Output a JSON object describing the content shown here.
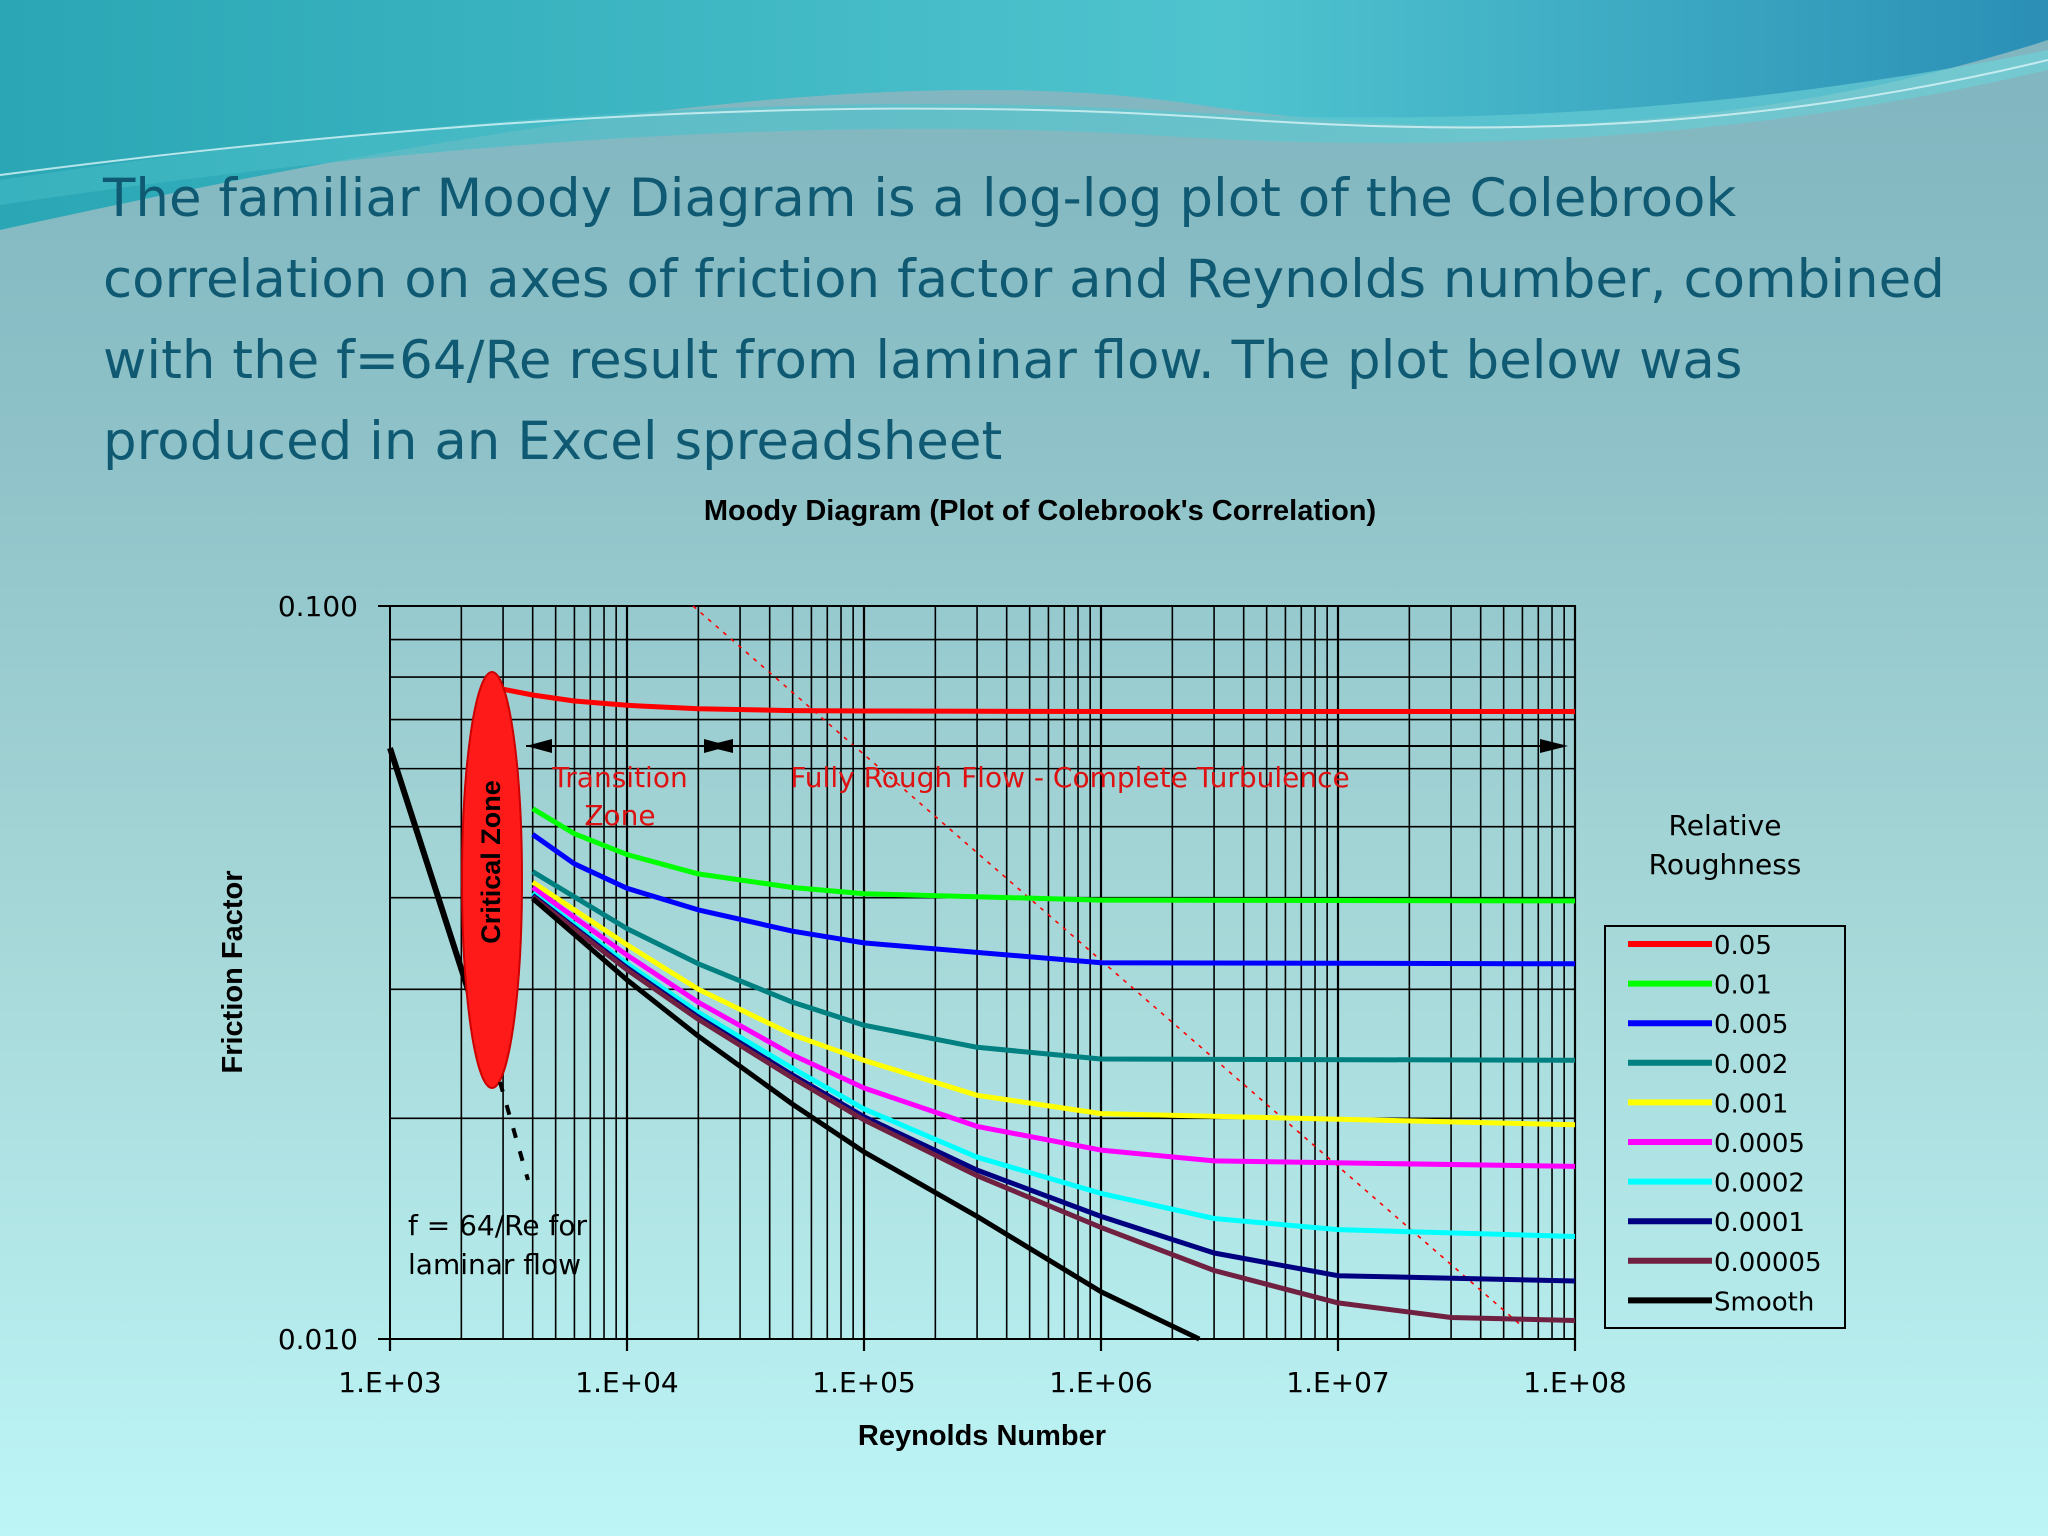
{
  "slide": {
    "text": "The familiar Moody Diagram is a log-log plot of the Colebrook correlation on axes of friction factor and Reynolds number, combined with the f=64/Re result from laminar flow. The plot below was produced in an Excel spreadsheet"
  },
  "colors": {
    "text": "#0f5a72",
    "annotation": "#dd1111"
  },
  "chart_data": {
    "type": "line",
    "title": "Moody Diagram (Plot of Colebrook's Correlation)",
    "xlabel": "Reynolds Number",
    "ylabel": "Friction Factor",
    "xscale": "log",
    "yscale": "log",
    "xlim": [
      1000,
      100000000
    ],
    "ylim": [
      0.01,
      0.1
    ],
    "x_ticks": [
      "1.E+03",
      "1.E+04",
      "1.E+05",
      "1.E+06",
      "1.E+07",
      "1.E+08"
    ],
    "y_ticks": [
      "0.100",
      "0.010"
    ],
    "grid": true,
    "legend_title": "Relative Roughness",
    "legend_position": "right",
    "laminar": {
      "x": [
        1000,
        2300
      ],
      "y": [
        0.064,
        0.0278
      ]
    },
    "series": [
      {
        "name": "0.05",
        "color": "#ff0000",
        "x": [
          2700,
          4000,
          6000,
          10000,
          20000,
          50000,
          100000,
          1000000,
          100000000
        ],
        "y": [
          0.0775,
          0.0756,
          0.0742,
          0.0732,
          0.0724,
          0.072,
          0.0719,
          0.0718,
          0.0718
        ]
      },
      {
        "name": "0.01",
        "color": "#00ff00",
        "x": [
          4000,
          6000,
          10000,
          20000,
          50000,
          100000,
          1000000,
          100000000
        ],
        "y": [
          0.0529,
          0.0489,
          0.0458,
          0.0431,
          0.0413,
          0.0405,
          0.0397,
          0.0396
        ]
      },
      {
        "name": "0.005",
        "color": "#0000ff",
        "x": [
          4000,
          6000,
          10000,
          20000,
          50000,
          100000,
          1000000,
          100000000
        ],
        "y": [
          0.0488,
          0.0445,
          0.0412,
          0.0385,
          0.036,
          0.0347,
          0.0326,
          0.0325
        ]
      },
      {
        "name": "0.002",
        "color": "#008080",
        "x": [
          4000,
          10000,
          20000,
          50000,
          100000,
          300000,
          1000000,
          100000000
        ],
        "y": [
          0.0434,
          0.0363,
          0.0325,
          0.0288,
          0.0268,
          0.025,
          0.0241,
          0.024
        ]
      },
      {
        "name": "0.001",
        "color": "#ffff00",
        "x": [
          4000,
          10000,
          20000,
          50000,
          100000,
          300000,
          1000000,
          100000000
        ],
        "y": [
          0.042,
          0.0345,
          0.03,
          0.026,
          0.024,
          0.0215,
          0.0203,
          0.0196
        ]
      },
      {
        "name": "0.0005",
        "color": "#ff00ff",
        "x": [
          4000,
          10000,
          20000,
          50000,
          100000,
          300000,
          1000000,
          3000000,
          100000000
        ],
        "y": [
          0.0413,
          0.0334,
          0.0288,
          0.0244,
          0.022,
          0.0195,
          0.0181,
          0.0175,
          0.0172
        ]
      },
      {
        "name": "0.0002",
        "color": "#00ffff",
        "x": [
          4000,
          10000,
          20000,
          50000,
          100000,
          300000,
          1000000,
          3000000,
          10000000,
          100000000
        ],
        "y": [
          0.0406,
          0.0325,
          0.0279,
          0.0234,
          0.0206,
          0.0177,
          0.0158,
          0.0146,
          0.0141,
          0.0138
        ]
      },
      {
        "name": "0.0001",
        "color": "#000080",
        "x": [
          4000,
          10000,
          20000,
          50000,
          100000,
          300000,
          1000000,
          3000000,
          10000000,
          100000000
        ],
        "y": [
          0.0403,
          0.0321,
          0.0275,
          0.0229,
          0.0201,
          0.017,
          0.0147,
          0.0131,
          0.0122,
          0.012
        ]
      },
      {
        "name": "0.00005",
        "color": "#702040",
        "x": [
          4000,
          10000,
          20000,
          50000,
          100000,
          300000,
          1000000,
          3000000,
          10000000,
          30000000,
          100000000
        ],
        "y": [
          0.0401,
          0.0319,
          0.0273,
          0.0227,
          0.0199,
          0.0167,
          0.0142,
          0.0124,
          0.0112,
          0.0107,
          0.0106
        ]
      },
      {
        "name": "Smooth",
        "color": "#000000",
        "x": [
          4000,
          10000,
          20000,
          50000,
          100000,
          300000,
          1000000,
          2600000
        ],
        "y": [
          0.0399,
          0.0309,
          0.0259,
          0.0209,
          0.018,
          0.0147,
          0.0116,
          0.01
        ]
      }
    ],
    "annotations": {
      "critical_zone": "Critical Zone",
      "transition_zone": "Transition\nZone",
      "fully_rough": "Fully Rough Flow - Complete Turbulence",
      "laminar_note": "f = 64/Re for\nlaminar flow"
    }
  }
}
